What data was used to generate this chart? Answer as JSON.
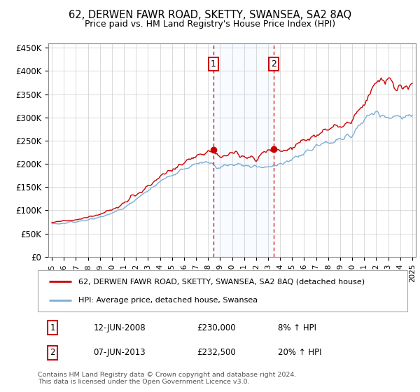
{
  "title": "62, DERWEN FAWR ROAD, SKETTY, SWANSEA, SA2 8AQ",
  "subtitle": "Price paid vs. HM Land Registry's House Price Index (HPI)",
  "sale1_date": "12-JUN-2008",
  "sale1_price": 230000,
  "sale1_label": "8% ↑ HPI",
  "sale1_year": 2008.45,
  "sale2_date": "07-JUN-2013",
  "sale2_price": 232500,
  "sale2_label": "20% ↑ HPI",
  "sale2_year": 2013.45,
  "legend_line1": "62, DERWEN FAWR ROAD, SKETTY, SWANSEA, SA2 8AQ (detached house)",
  "legend_line2": "HPI: Average price, detached house, Swansea",
  "footnote": "Contains HM Land Registry data © Crown copyright and database right 2024.\nThis data is licensed under the Open Government Licence v3.0.",
  "red_color": "#cc0000",
  "blue_color": "#7aaed6",
  "shade_color": "#ddeeff",
  "ylim_min": 0,
  "ylim_max": 460000,
  "xmin": 1994.7,
  "xmax": 2025.3,
  "years_annual": [
    1995,
    1996,
    1997,
    1998,
    1999,
    2000,
    2001,
    2002,
    2003,
    2004,
    2005,
    2006,
    2007,
    2008,
    2009,
    2010,
    2011,
    2012,
    2013,
    2014,
    2015,
    2016,
    2017,
    2018,
    2019,
    2020,
    2021,
    2022,
    2023,
    2024,
    2025
  ],
  "hpi_values": [
    70000,
    72000,
    75000,
    79000,
    85000,
    93000,
    105000,
    123000,
    143000,
    163000,
    175000,
    188000,
    200000,
    205000,
    192000,
    200000,
    197000,
    193000,
    192000,
    200000,
    210000,
    222000,
    237000,
    248000,
    253000,
    260000,
    295000,
    315000,
    298000,
    300000,
    305000
  ],
  "red_values": [
    75000,
    77000,
    80000,
    85000,
    92000,
    101000,
    115000,
    133000,
    153000,
    174000,
    188000,
    202000,
    215000,
    230000,
    218000,
    225000,
    218000,
    210000,
    232500,
    224000,
    235000,
    250000,
    265000,
    276000,
    282000,
    292000,
    330000,
    378000,
    382000,
    368000,
    362000
  ]
}
